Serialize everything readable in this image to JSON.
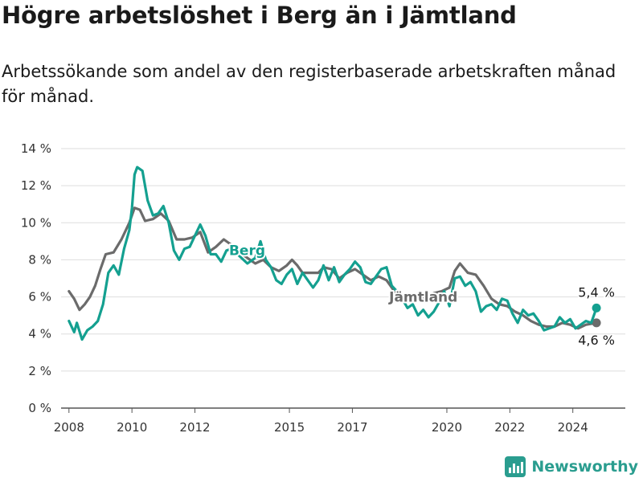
{
  "title": "Högre arbetslöshet i Berg än i Jämtland",
  "subtitle": "Arbetssökande som andel av den registerbaserade arbetskraften månad för månad.",
  "logo": {
    "text": "Newsworthy",
    "icon": "bar-chart-icon",
    "color": "#2a9d8f"
  },
  "chart_data": {
    "type": "line",
    "title": "Högre arbetslöshet i Berg än i Jämtland",
    "xlabel": "",
    "ylabel": "",
    "ylim": [
      0,
      14
    ],
    "xlim": [
      "2007-10",
      "2025-09"
    ],
    "y_ticks": [
      0,
      2,
      4,
      6,
      8,
      10,
      12,
      14
    ],
    "y_tick_labels": [
      "0 %",
      "2 %",
      "4 %",
      "6 %",
      "8 %",
      "10 %",
      "12 %",
      "14 %"
    ],
    "x_ticks": [
      "2008-01",
      "2010-01",
      "2012-01",
      "2015-01",
      "2017-01",
      "2020-01",
      "2022-01",
      "2024-01"
    ],
    "x_tick_labels": [
      "2008",
      "2010",
      "2012",
      "2015",
      "2017",
      "2020",
      "2022",
      "2024"
    ],
    "grid": "horizontal",
    "legend": "inline labels",
    "series": [
      {
        "name": "Berg",
        "color": "#14a090",
        "end_label": "5,4 %",
        "points": [
          [
            "2008-01",
            4.7
          ],
          [
            "2008-03",
            4.1
          ],
          [
            "2008-04",
            4.6
          ],
          [
            "2008-06",
            3.7
          ],
          [
            "2008-08",
            4.2
          ],
          [
            "2008-10",
            4.4
          ],
          [
            "2008-12",
            4.7
          ],
          [
            "2009-02",
            5.6
          ],
          [
            "2009-04",
            7.3
          ],
          [
            "2009-06",
            7.7
          ],
          [
            "2009-08",
            7.2
          ],
          [
            "2009-10",
            8.6
          ],
          [
            "2009-12",
            9.6
          ],
          [
            "2010-01",
            10.8
          ],
          [
            "2010-02",
            12.6
          ],
          [
            "2010-03",
            13.0
          ],
          [
            "2010-05",
            12.8
          ],
          [
            "2010-07",
            11.2
          ],
          [
            "2010-09",
            10.4
          ],
          [
            "2010-11",
            10.5
          ],
          [
            "2011-01",
            10.9
          ],
          [
            "2011-03",
            10.0
          ],
          [
            "2011-05",
            8.5
          ],
          [
            "2011-07",
            8.0
          ],
          [
            "2011-09",
            8.6
          ],
          [
            "2011-11",
            8.7
          ],
          [
            "2012-01",
            9.3
          ],
          [
            "2012-03",
            9.9
          ],
          [
            "2012-05",
            9.3
          ],
          [
            "2012-07",
            8.3
          ],
          [
            "2012-09",
            8.3
          ],
          [
            "2012-11",
            7.9
          ],
          [
            "2013-01",
            8.5
          ],
          [
            "2013-03",
            8.6
          ],
          [
            "2013-06",
            8.2
          ],
          [
            "2013-09",
            7.8
          ],
          [
            "2013-12",
            8.1
          ],
          [
            "2014-02",
            9.0
          ],
          [
            "2014-04",
            8.0
          ],
          [
            "2014-06",
            7.6
          ],
          [
            "2014-08",
            6.9
          ],
          [
            "2014-10",
            6.7
          ],
          [
            "2014-12",
            7.2
          ],
          [
            "2015-02",
            7.5
          ],
          [
            "2015-04",
            6.7
          ],
          [
            "2015-06",
            7.3
          ],
          [
            "2015-08",
            6.9
          ],
          [
            "2015-10",
            6.5
          ],
          [
            "2015-12",
            6.9
          ],
          [
            "2016-02",
            7.7
          ],
          [
            "2016-04",
            6.9
          ],
          [
            "2016-06",
            7.6
          ],
          [
            "2016-08",
            6.8
          ],
          [
            "2016-10",
            7.2
          ],
          [
            "2016-12",
            7.5
          ],
          [
            "2017-02",
            7.9
          ],
          [
            "2017-04",
            7.6
          ],
          [
            "2017-06",
            6.8
          ],
          [
            "2017-08",
            6.7
          ],
          [
            "2017-10",
            7.1
          ],
          [
            "2017-12",
            7.5
          ],
          [
            "2018-02",
            7.6
          ],
          [
            "2018-04",
            6.6
          ],
          [
            "2018-06",
            6.3
          ],
          [
            "2018-08",
            5.9
          ],
          [
            "2018-10",
            5.4
          ],
          [
            "2018-12",
            5.6
          ],
          [
            "2019-02",
            5.0
          ],
          [
            "2019-04",
            5.3
          ],
          [
            "2019-06",
            4.9
          ],
          [
            "2019-08",
            5.2
          ],
          [
            "2019-10",
            5.7
          ],
          [
            "2019-12",
            6.3
          ],
          [
            "2020-02",
            5.5
          ],
          [
            "2020-04",
            7.0
          ],
          [
            "2020-06",
            7.1
          ],
          [
            "2020-08",
            6.6
          ],
          [
            "2020-10",
            6.8
          ],
          [
            "2020-12",
            6.3
          ],
          [
            "2021-02",
            5.2
          ],
          [
            "2021-04",
            5.5
          ],
          [
            "2021-06",
            5.6
          ],
          [
            "2021-08",
            5.3
          ],
          [
            "2021-10",
            5.9
          ],
          [
            "2021-12",
            5.8
          ],
          [
            "2022-02",
            5.1
          ],
          [
            "2022-04",
            4.6
          ],
          [
            "2022-06",
            5.3
          ],
          [
            "2022-08",
            5.0
          ],
          [
            "2022-10",
            5.1
          ],
          [
            "2022-12",
            4.7
          ],
          [
            "2023-02",
            4.2
          ],
          [
            "2023-04",
            4.3
          ],
          [
            "2023-06",
            4.4
          ],
          [
            "2023-08",
            4.9
          ],
          [
            "2023-10",
            4.6
          ],
          [
            "2023-12",
            4.8
          ],
          [
            "2024-02",
            4.3
          ],
          [
            "2024-04",
            4.5
          ],
          [
            "2024-06",
            4.7
          ],
          [
            "2024-08",
            4.6
          ],
          [
            "2024-10",
            5.4
          ]
        ]
      },
      {
        "name": "Jämtland",
        "color": "#6b6b6b",
        "end_label": "4,6 %",
        "points": [
          [
            "2008-01",
            6.3
          ],
          [
            "2008-03",
            5.9
          ],
          [
            "2008-05",
            5.3
          ],
          [
            "2008-07",
            5.6
          ],
          [
            "2008-09",
            6.0
          ],
          [
            "2008-11",
            6.6
          ],
          [
            "2009-01",
            7.5
          ],
          [
            "2009-03",
            8.3
          ],
          [
            "2009-06",
            8.4
          ],
          [
            "2009-09",
            9.1
          ],
          [
            "2009-12",
            10.0
          ],
          [
            "2010-02",
            10.8
          ],
          [
            "2010-04",
            10.7
          ],
          [
            "2010-06",
            10.1
          ],
          [
            "2010-09",
            10.2
          ],
          [
            "2010-12",
            10.5
          ],
          [
            "2011-03",
            10.1
          ],
          [
            "2011-06",
            9.1
          ],
          [
            "2011-09",
            9.1
          ],
          [
            "2011-12",
            9.2
          ],
          [
            "2012-03",
            9.5
          ],
          [
            "2012-06",
            8.4
          ],
          [
            "2012-09",
            8.7
          ],
          [
            "2012-12",
            9.1
          ],
          [
            "2013-03",
            8.8
          ],
          [
            "2013-06",
            8.4
          ],
          [
            "2013-09",
            8.1
          ],
          [
            "2013-12",
            7.8
          ],
          [
            "2014-03",
            8.0
          ],
          [
            "2014-06",
            7.6
          ],
          [
            "2014-09",
            7.4
          ],
          [
            "2014-12",
            7.7
          ],
          [
            "2015-02",
            8.0
          ],
          [
            "2015-04",
            7.7
          ],
          [
            "2015-06",
            7.3
          ],
          [
            "2015-09",
            7.3
          ],
          [
            "2015-12",
            7.3
          ],
          [
            "2016-02",
            7.6
          ],
          [
            "2016-05",
            7.5
          ],
          [
            "2016-08",
            7.0
          ],
          [
            "2016-11",
            7.3
          ],
          [
            "2017-02",
            7.5
          ],
          [
            "2017-05",
            7.2
          ],
          [
            "2017-08",
            6.9
          ],
          [
            "2017-11",
            7.1
          ],
          [
            "2018-02",
            6.9
          ],
          [
            "2018-05",
            6.3
          ],
          [
            "2018-08",
            5.9
          ],
          [
            "2018-11",
            5.9
          ],
          [
            "2019-02",
            6.0
          ],
          [
            "2019-05",
            5.9
          ],
          [
            "2019-08",
            6.2
          ],
          [
            "2019-11",
            6.3
          ],
          [
            "2020-02",
            6.5
          ],
          [
            "2020-04",
            7.4
          ],
          [
            "2020-06",
            7.8
          ],
          [
            "2020-09",
            7.3
          ],
          [
            "2020-12",
            7.2
          ],
          [
            "2021-03",
            6.6
          ],
          [
            "2021-06",
            5.9
          ],
          [
            "2021-09",
            5.6
          ],
          [
            "2021-12",
            5.5
          ],
          [
            "2022-03",
            5.2
          ],
          [
            "2022-06",
            5.0
          ],
          [
            "2022-09",
            4.7
          ],
          [
            "2022-12",
            4.5
          ],
          [
            "2023-03",
            4.4
          ],
          [
            "2023-06",
            4.4
          ],
          [
            "2023-09",
            4.6
          ],
          [
            "2023-12",
            4.5
          ],
          [
            "2024-03",
            4.3
          ],
          [
            "2024-06",
            4.5
          ],
          [
            "2024-10",
            4.6
          ]
        ]
      }
    ]
  }
}
